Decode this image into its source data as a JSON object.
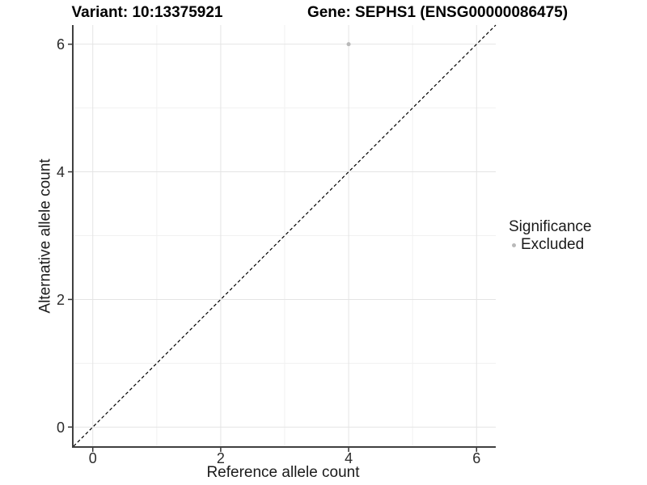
{
  "titles": {
    "variant": "Variant: 10:13375921",
    "gene": "Gene: SEPHS1 (ENSG00000086475)"
  },
  "axes": {
    "x_label": "Reference allele count",
    "y_label": "Alternative allele count"
  },
  "legend": {
    "title": "Significance",
    "position": "right",
    "items": [
      {
        "label": "Excluded",
        "color": "#b9b9b9"
      }
    ]
  },
  "chart_data": {
    "type": "scatter",
    "title_left": "Variant: 10:13375921",
    "title_right": "Gene: SEPHS1 (ENSG00000086475)",
    "xlabel": "Reference allele count",
    "ylabel": "Alternative allele count",
    "xlim": [
      -0.3,
      6.3
    ],
    "ylim": [
      -0.3,
      6.3
    ],
    "x_ticks": [
      0,
      2,
      4,
      6
    ],
    "y_ticks": [
      0,
      2,
      4,
      6
    ],
    "x_minor_ticks": [
      1,
      3,
      5
    ],
    "y_minor_ticks": [
      1,
      3,
      5
    ],
    "grid": true,
    "legend_position": "right",
    "series": [
      {
        "name": "Excluded",
        "color": "#b9b9b9",
        "point_radius": 2.5,
        "points": [
          [
            4,
            6
          ]
        ]
      }
    ],
    "reference_line": {
      "type": "identity",
      "from": [
        -0.3,
        -0.3
      ],
      "to": [
        6.3,
        6.3
      ],
      "style": "dashed",
      "color": "#000000"
    }
  },
  "style": {
    "background": "#ffffff",
    "grid_major": "#e4e4e4",
    "grid_minor": "#f1f1f1",
    "axis_line": "#404040",
    "tick_mark": "#333333",
    "tick_label": "#2b2b2b"
  }
}
